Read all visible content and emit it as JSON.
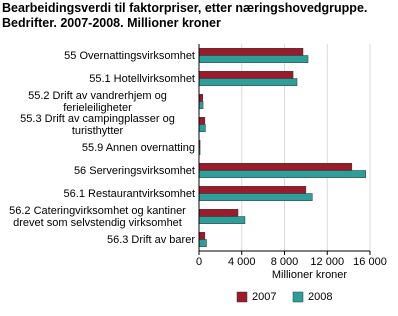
{
  "chart_data": {
    "type": "bar",
    "orientation": "horizontal",
    "title": "Bearbeidingsverdi til faktorpriser, etter næringshovedgruppe. Bedrifter. 2007-2008. Millioner kroner",
    "x_label": "Millioner kroner",
    "categories": [
      "55 Overnattingsvirksomhet",
      "55.1 Hotellvirksomhet",
      "55.2 Drift av vandrerhjem og ferieleiligheter",
      "55.3 Drift av campingplasser og turisthytter",
      "55.9 Annen overnatting",
      "56 Serveringsvirksomhet",
      "56.1 Restaurantvirksomhet",
      "56.2 Cateringvirksomhet og kantiner drevet som selvstendig virksomhet",
      "56.3 Drift av barer"
    ],
    "series": [
      {
        "name": "2007",
        "color": "#9b1b2a",
        "values": [
          9730,
          8800,
          350,
          550,
          100,
          14300,
          10000,
          3650,
          550
        ]
      },
      {
        "name": "2008",
        "color": "#2e9e9b",
        "values": [
          10200,
          9170,
          380,
          600,
          100,
          15600,
          10600,
          4300,
          700
        ]
      }
    ],
    "xlim": [
      0,
      16000
    ],
    "xticks": [
      0,
      {
        "value": 4000,
        "label": "4 000"
      },
      {
        "value": 8000,
        "label": "8 000"
      },
      {
        "value": 12000,
        "label": "12 000"
      },
      {
        "value": 16000,
        "label": "16 000"
      }
    ],
    "grid": true,
    "legend": "bottom"
  }
}
